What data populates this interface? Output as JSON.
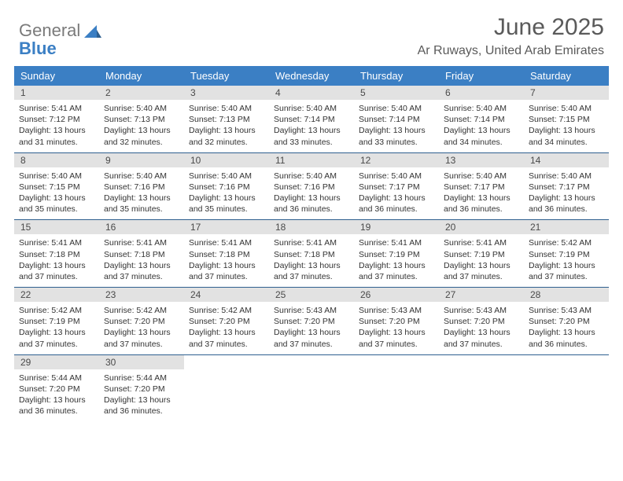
{
  "brand": {
    "word1": "General",
    "word2": "Blue"
  },
  "title": "June 2025",
  "location": "Ar Ruways, United Arab Emirates",
  "colors": {
    "header_bg": "#3b7fc4",
    "header_text": "#ffffff",
    "day_bar_bg": "#e2e2e2",
    "week_border": "#2e5f8f",
    "title_color": "#5a5a5a"
  },
  "weekdays": [
    "Sunday",
    "Monday",
    "Tuesday",
    "Wednesday",
    "Thursday",
    "Friday",
    "Saturday"
  ],
  "weeks": [
    [
      {
        "day": 1,
        "sunrise": "5:41 AM",
        "sunset": "7:12 PM",
        "daylight": "13 hours and 31 minutes."
      },
      {
        "day": 2,
        "sunrise": "5:40 AM",
        "sunset": "7:13 PM",
        "daylight": "13 hours and 32 minutes."
      },
      {
        "day": 3,
        "sunrise": "5:40 AM",
        "sunset": "7:13 PM",
        "daylight": "13 hours and 32 minutes."
      },
      {
        "day": 4,
        "sunrise": "5:40 AM",
        "sunset": "7:14 PM",
        "daylight": "13 hours and 33 minutes."
      },
      {
        "day": 5,
        "sunrise": "5:40 AM",
        "sunset": "7:14 PM",
        "daylight": "13 hours and 33 minutes."
      },
      {
        "day": 6,
        "sunrise": "5:40 AM",
        "sunset": "7:14 PM",
        "daylight": "13 hours and 34 minutes."
      },
      {
        "day": 7,
        "sunrise": "5:40 AM",
        "sunset": "7:15 PM",
        "daylight": "13 hours and 34 minutes."
      }
    ],
    [
      {
        "day": 8,
        "sunrise": "5:40 AM",
        "sunset": "7:15 PM",
        "daylight": "13 hours and 35 minutes."
      },
      {
        "day": 9,
        "sunrise": "5:40 AM",
        "sunset": "7:16 PM",
        "daylight": "13 hours and 35 minutes."
      },
      {
        "day": 10,
        "sunrise": "5:40 AM",
        "sunset": "7:16 PM",
        "daylight": "13 hours and 35 minutes."
      },
      {
        "day": 11,
        "sunrise": "5:40 AM",
        "sunset": "7:16 PM",
        "daylight": "13 hours and 36 minutes."
      },
      {
        "day": 12,
        "sunrise": "5:40 AM",
        "sunset": "7:17 PM",
        "daylight": "13 hours and 36 minutes."
      },
      {
        "day": 13,
        "sunrise": "5:40 AM",
        "sunset": "7:17 PM",
        "daylight": "13 hours and 36 minutes."
      },
      {
        "day": 14,
        "sunrise": "5:40 AM",
        "sunset": "7:17 PM",
        "daylight": "13 hours and 36 minutes."
      }
    ],
    [
      {
        "day": 15,
        "sunrise": "5:41 AM",
        "sunset": "7:18 PM",
        "daylight": "13 hours and 37 minutes."
      },
      {
        "day": 16,
        "sunrise": "5:41 AM",
        "sunset": "7:18 PM",
        "daylight": "13 hours and 37 minutes."
      },
      {
        "day": 17,
        "sunrise": "5:41 AM",
        "sunset": "7:18 PM",
        "daylight": "13 hours and 37 minutes."
      },
      {
        "day": 18,
        "sunrise": "5:41 AM",
        "sunset": "7:18 PM",
        "daylight": "13 hours and 37 minutes."
      },
      {
        "day": 19,
        "sunrise": "5:41 AM",
        "sunset": "7:19 PM",
        "daylight": "13 hours and 37 minutes."
      },
      {
        "day": 20,
        "sunrise": "5:41 AM",
        "sunset": "7:19 PM",
        "daylight": "13 hours and 37 minutes."
      },
      {
        "day": 21,
        "sunrise": "5:42 AM",
        "sunset": "7:19 PM",
        "daylight": "13 hours and 37 minutes."
      }
    ],
    [
      {
        "day": 22,
        "sunrise": "5:42 AM",
        "sunset": "7:19 PM",
        "daylight": "13 hours and 37 minutes."
      },
      {
        "day": 23,
        "sunrise": "5:42 AM",
        "sunset": "7:20 PM",
        "daylight": "13 hours and 37 minutes."
      },
      {
        "day": 24,
        "sunrise": "5:42 AM",
        "sunset": "7:20 PM",
        "daylight": "13 hours and 37 minutes."
      },
      {
        "day": 25,
        "sunrise": "5:43 AM",
        "sunset": "7:20 PM",
        "daylight": "13 hours and 37 minutes."
      },
      {
        "day": 26,
        "sunrise": "5:43 AM",
        "sunset": "7:20 PM",
        "daylight": "13 hours and 37 minutes."
      },
      {
        "day": 27,
        "sunrise": "5:43 AM",
        "sunset": "7:20 PM",
        "daylight": "13 hours and 37 minutes."
      },
      {
        "day": 28,
        "sunrise": "5:43 AM",
        "sunset": "7:20 PM",
        "daylight": "13 hours and 36 minutes."
      }
    ],
    [
      {
        "day": 29,
        "sunrise": "5:44 AM",
        "sunset": "7:20 PM",
        "daylight": "13 hours and 36 minutes."
      },
      {
        "day": 30,
        "sunrise": "5:44 AM",
        "sunset": "7:20 PM",
        "daylight": "13 hours and 36 minutes."
      },
      null,
      null,
      null,
      null,
      null
    ]
  ],
  "labels": {
    "sunrise": "Sunrise: ",
    "sunset": "Sunset: ",
    "daylight": "Daylight: "
  }
}
